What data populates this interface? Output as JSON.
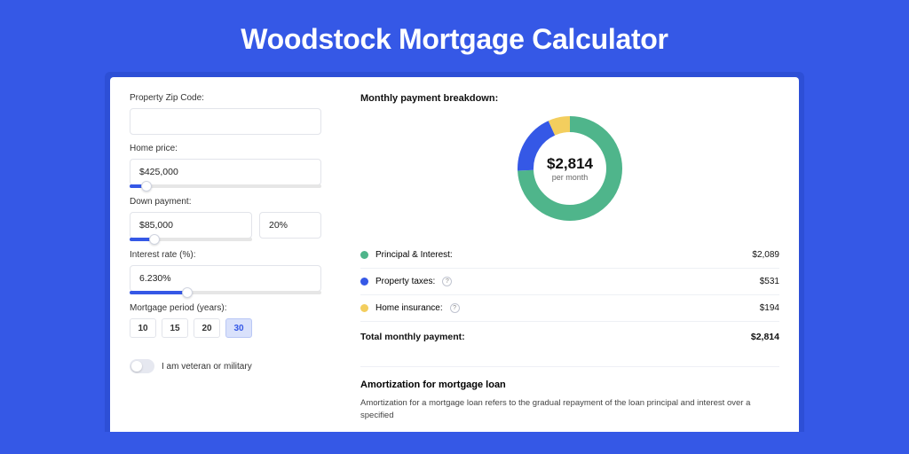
{
  "page": {
    "title": "Woodstock Mortgage Calculator",
    "background_color": "#3558e6",
    "card_background": "#ffffff",
    "shadow_color": "#2d4fd6",
    "text_color": "#111111",
    "label_color": "#333333",
    "border_color": "#e2e4ea",
    "divider_color": "#eef0f5"
  },
  "form": {
    "zip": {
      "label": "Property Zip Code:",
      "value": ""
    },
    "home_price": {
      "label": "Home price:",
      "value": "$425,000",
      "slider_pct": 9
    },
    "down_payment": {
      "label": "Down payment:",
      "amount": "$85,000",
      "pct": "20%",
      "slider_pct": 20
    },
    "interest_rate": {
      "label": "Interest rate (%):",
      "value": "6.230%",
      "slider_pct": 30
    },
    "period": {
      "label": "Mortgage period (years):",
      "options": [
        "10",
        "15",
        "20",
        "30"
      ],
      "active_index": 3,
      "active_bg": "#d9e1fb",
      "active_border": "#b9c7f5",
      "active_text": "#3558e6"
    },
    "veteran": {
      "label": "I am veteran or military",
      "checked": false
    }
  },
  "breakdown": {
    "title": "Monthly payment breakdown:",
    "donut": {
      "amount": "$2,814",
      "sub": "per month",
      "slices": [
        {
          "color": "#4fb58b",
          "pct": 74.2
        },
        {
          "color": "#3558e6",
          "pct": 18.9
        },
        {
          "color": "#f3ce5e",
          "pct": 6.9
        }
      ],
      "stroke_width": 18
    },
    "items": [
      {
        "dot": "#4fb58b",
        "label": "Principal & Interest:",
        "info": false,
        "value": "$2,089"
      },
      {
        "dot": "#3558e6",
        "label": "Property taxes:",
        "info": true,
        "value": "$531"
      },
      {
        "dot": "#f3ce5e",
        "label": "Home insurance:",
        "info": true,
        "value": "$194"
      }
    ],
    "total": {
      "label": "Total monthly payment:",
      "value": "$2,814"
    }
  },
  "amortization": {
    "title": "Amortization for mortgage loan",
    "text": "Amortization for a mortgage loan refers to the gradual repayment of the loan principal and interest over a specified"
  }
}
